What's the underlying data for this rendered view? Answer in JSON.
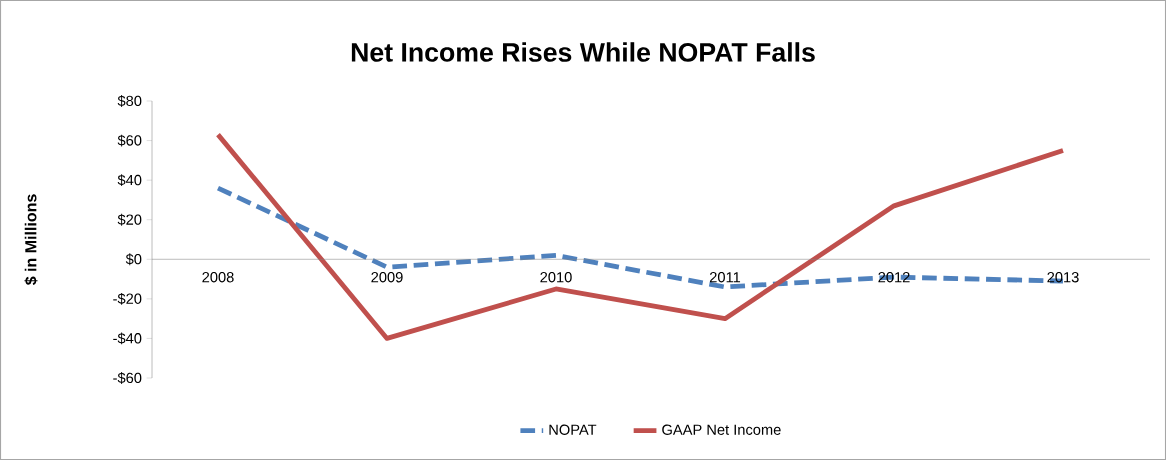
{
  "chart_data": {
    "type": "line",
    "title": "Net Income Rises While NOPAT Falls",
    "ylabel": "$ in Millions",
    "categories": [
      "2008",
      "2009",
      "2010",
      "2011",
      "2012",
      "2013"
    ],
    "series": [
      {
        "name": "NOPAT",
        "color": "#4f81bd",
        "line_style": "dashed",
        "values": [
          36,
          -4,
          2,
          -14,
          -9,
          -11
        ]
      },
      {
        "name": "GAAP Net Income",
        "color": "#c0504d",
        "line_style": "solid",
        "values": [
          63,
          -40,
          -15,
          -30,
          27,
          55
        ]
      }
    ],
    "ylim": [
      -60,
      80
    ],
    "yticks": [
      {
        "value": -60,
        "label": "-$60"
      },
      {
        "value": -40,
        "label": "-$40"
      },
      {
        "value": -20,
        "label": "-$20"
      },
      {
        "value": 0,
        "label": "$0"
      },
      {
        "value": 20,
        "label": "$20"
      },
      {
        "value": 40,
        "label": "$40"
      },
      {
        "value": 60,
        "label": "$60"
      },
      {
        "value": 80,
        "label": "$80"
      }
    ],
    "legend": "bottom",
    "grid": false,
    "marker": "none"
  }
}
